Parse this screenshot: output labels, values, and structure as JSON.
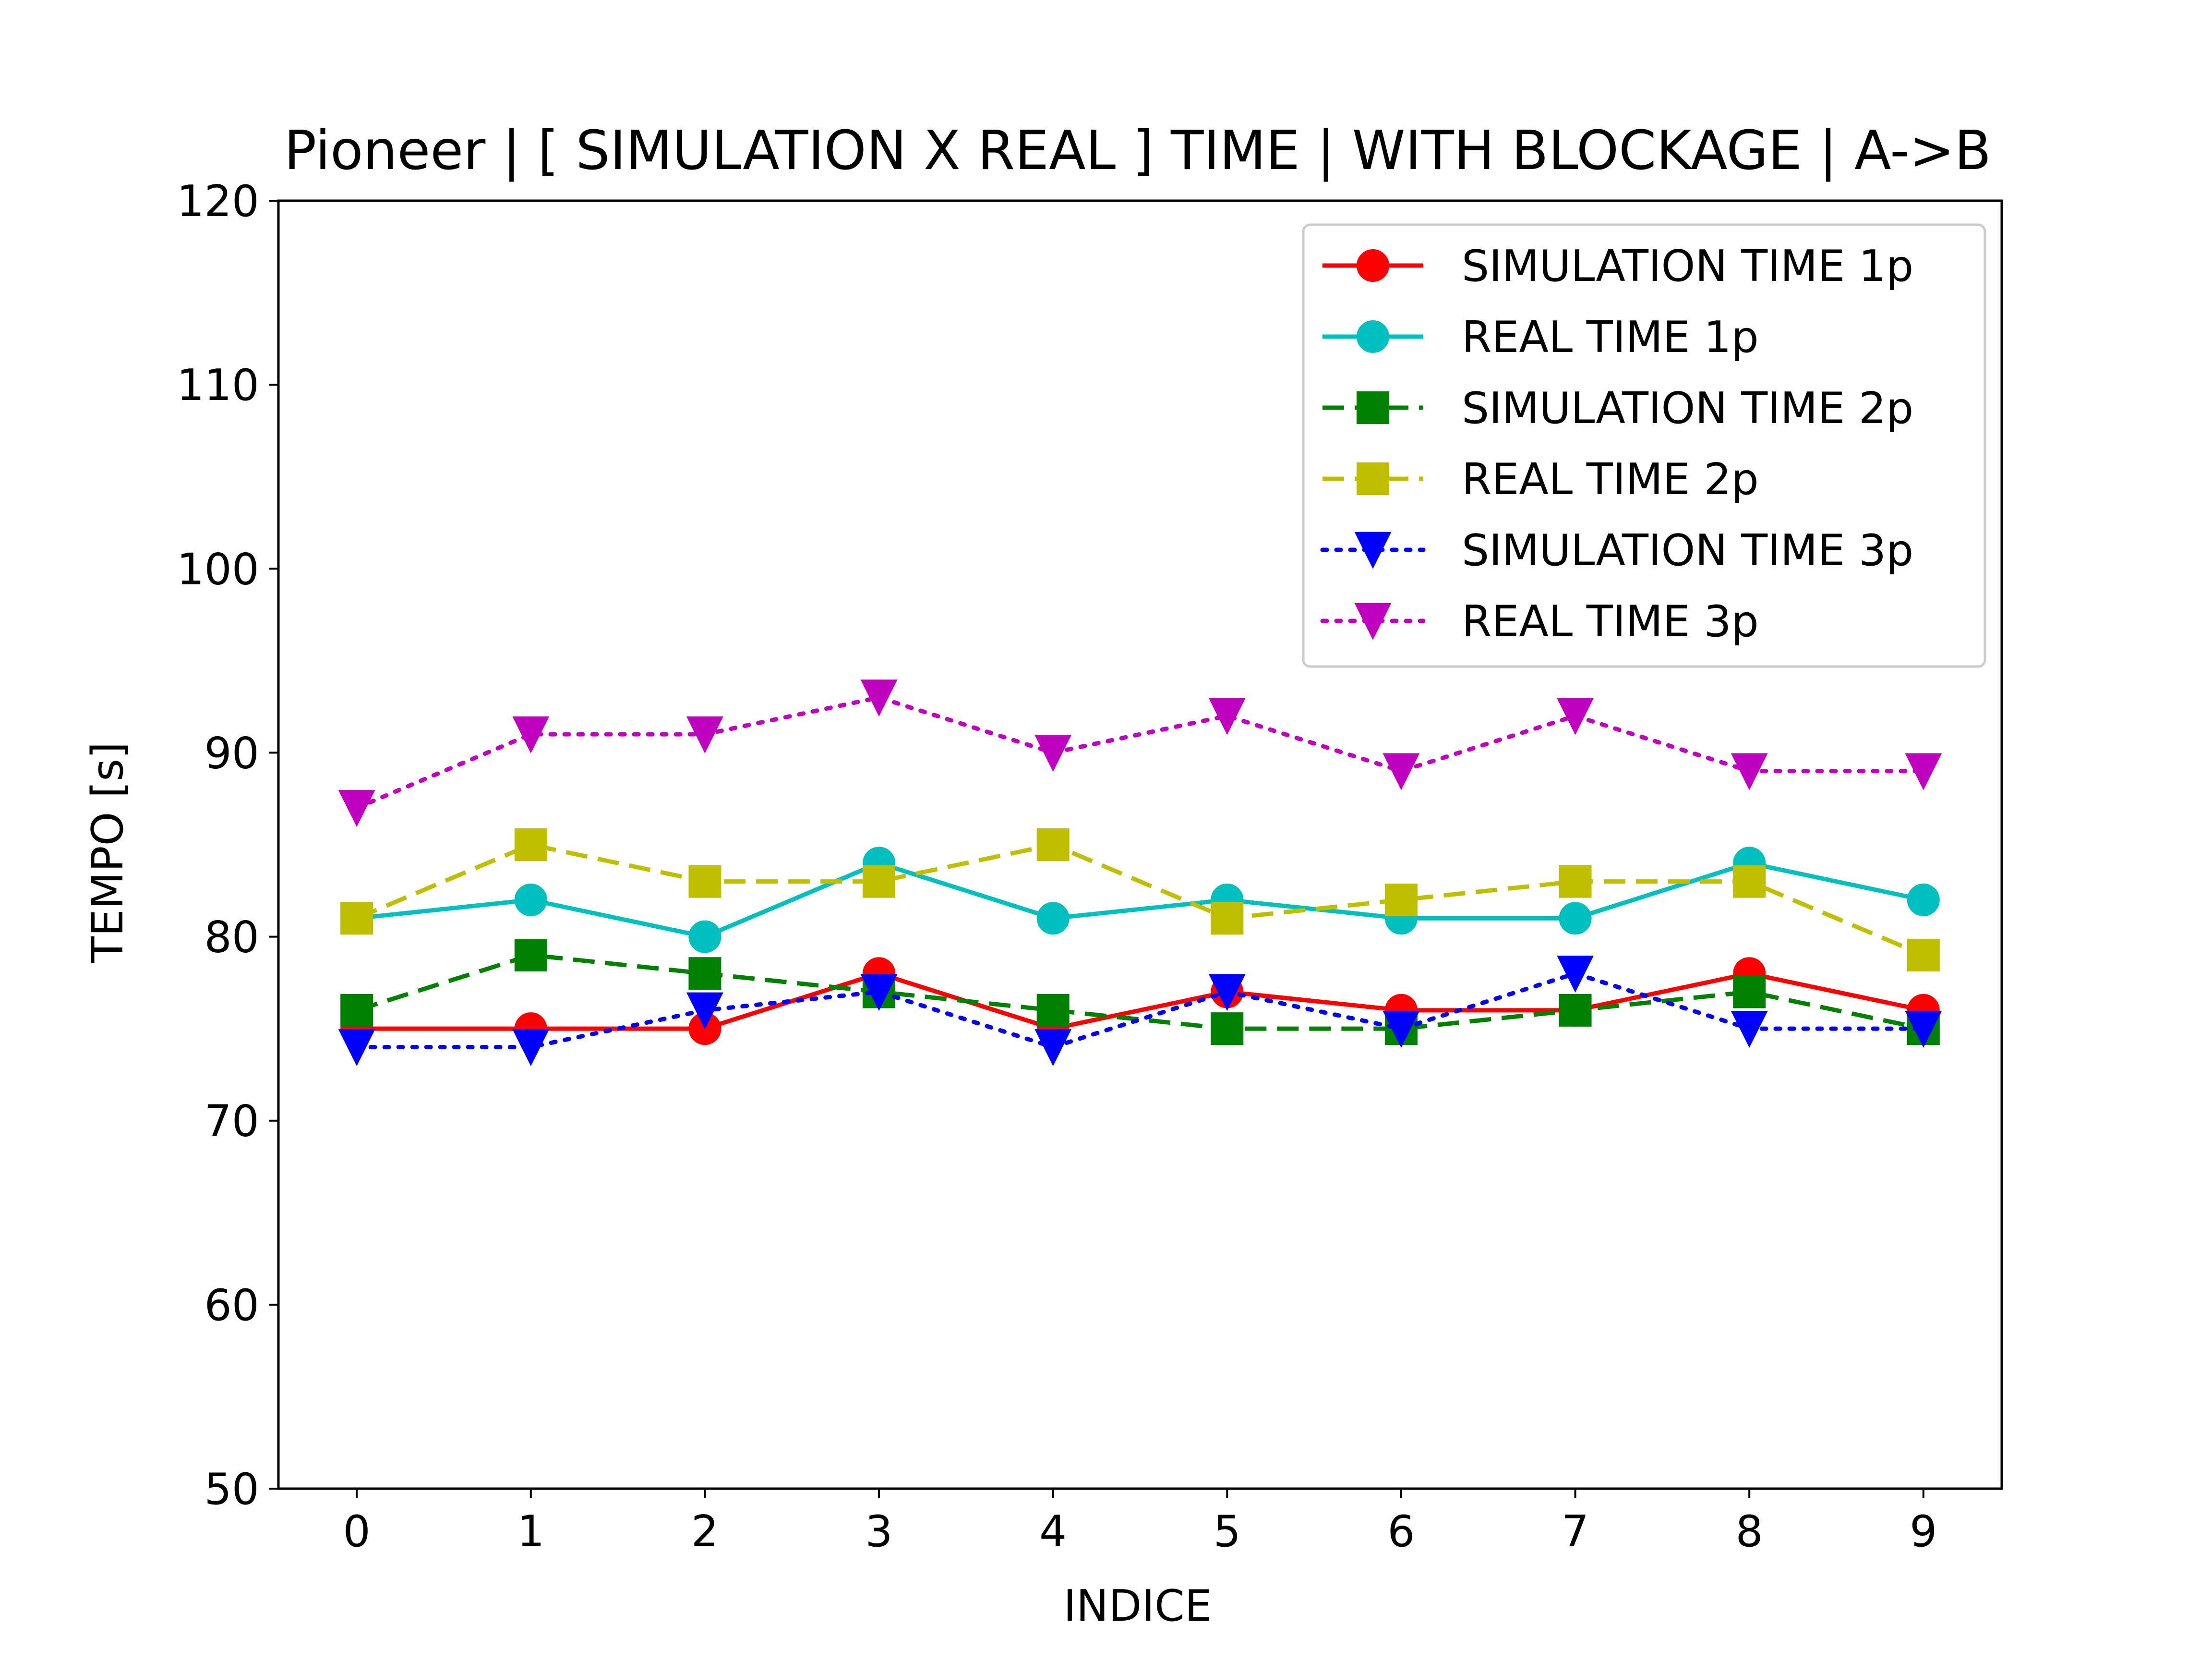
{
  "chart_data": {
    "type": "line",
    "title": "Pioneer | [ SIMULATION X REAL ] TIME | WITH BLOCKAGE | A->B",
    "xlabel": "INDICE",
    "ylabel": "TEMPO [s]",
    "x": [
      0,
      1,
      2,
      3,
      4,
      5,
      6,
      7,
      8,
      9
    ],
    "xticks": [
      "0",
      "1",
      "2",
      "3",
      "4",
      "5",
      "6",
      "7",
      "8",
      "9"
    ],
    "ylim": [
      50,
      120
    ],
    "yticks": [
      "50",
      "60",
      "70",
      "80",
      "90",
      "100",
      "110",
      "120"
    ],
    "xlim": [
      -0.45,
      9.45
    ],
    "grid": false,
    "legend_position": "top-right",
    "series": [
      {
        "name": "SIMULATION TIME 1p",
        "color": "#ff0000",
        "marker": "circle",
        "linestyle": "solid",
        "values": [
          75,
          75,
          75,
          78,
          75,
          77,
          76,
          76,
          78,
          76
        ]
      },
      {
        "name": "REAL TIME 1p",
        "color": "#00bfbf",
        "marker": "circle",
        "linestyle": "solid",
        "values": [
          81,
          82,
          80,
          84,
          81,
          82,
          81,
          81,
          84,
          82
        ]
      },
      {
        "name": "SIMULATION TIME 2p",
        "color": "#008000",
        "marker": "square",
        "linestyle": "dashed",
        "values": [
          76,
          79,
          78,
          77,
          76,
          75,
          75,
          76,
          77,
          75
        ]
      },
      {
        "name": "REAL TIME 2p",
        "color": "#bfbf00",
        "marker": "square",
        "linestyle": "dashed",
        "values": [
          81,
          85,
          83,
          83,
          85,
          81,
          82,
          83,
          83,
          79
        ]
      },
      {
        "name": "SIMULATION TIME 3p",
        "color": "#0000ff",
        "marker": "triangle-down",
        "linestyle": "dotted",
        "values": [
          74,
          74,
          76,
          77,
          74,
          77,
          75,
          78,
          75,
          75
        ]
      },
      {
        "name": "REAL TIME 3p",
        "color": "#bf00bf",
        "marker": "triangle-down",
        "linestyle": "dotted",
        "values": [
          87,
          91,
          91,
          93,
          90,
          92,
          89,
          92,
          89,
          89
        ]
      }
    ]
  }
}
